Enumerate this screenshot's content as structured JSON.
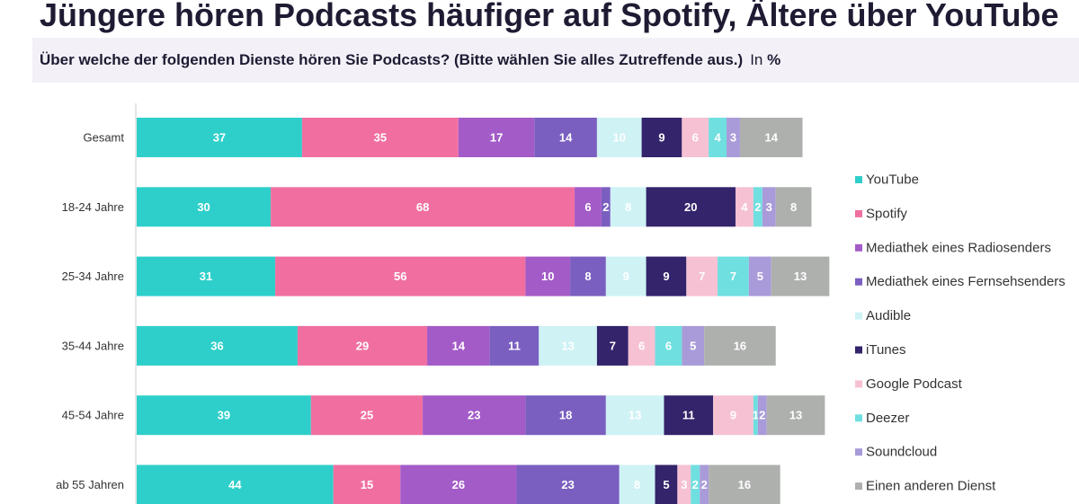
{
  "title": "Jüngere hören Podcasts häufiger auf Spotify, Ältere über YouTube",
  "subtitle": "Über welche der folgenden Dienste hören Sie Podcasts? (Bitte wählen Sie alles Zutreffende aus.)",
  "unit_prefix": "In",
  "unit": "%",
  "chart_data": {
    "type": "bar",
    "orientation": "horizontal",
    "stacked": true,
    "legend": "right",
    "grid": false,
    "categories": [
      "Gesamt",
      "18-24 Jahre",
      "25-34  Jahre",
      "35-44 Jahre",
      "45-54 Jahre",
      "ab 55 Jahren"
    ],
    "series": [
      {
        "name": "YouTube",
        "color": "#2ecfca",
        "values": [
          37,
          30,
          31,
          36,
          39,
          44
        ]
      },
      {
        "name": "Spotify",
        "color": "#f06fa0",
        "values": [
          35,
          68,
          56,
          29,
          25,
          15
        ]
      },
      {
        "name": "Mediathek eines Radiosenders",
        "color": "#a35bc7",
        "values": [
          17,
          6,
          10,
          14,
          23,
          26
        ]
      },
      {
        "name": "Mediathek eines Fernsehsenders",
        "color": "#7a5fc0",
        "values": [
          14,
          2,
          8,
          11,
          18,
          23
        ]
      },
      {
        "name": "Audible",
        "color": "#cff2f5",
        "values": [
          10,
          8,
          9,
          13,
          13,
          8
        ]
      },
      {
        "name": "iTunes",
        "color": "#33246b",
        "values": [
          9,
          20,
          9,
          7,
          11,
          5
        ]
      },
      {
        "name": "Google Podcast",
        "color": "#f6c1d3",
        "values": [
          6,
          4,
          7,
          6,
          9,
          3
        ]
      },
      {
        "name": "Deezer",
        "color": "#6fdfdf",
        "values": [
          4,
          2,
          7,
          6,
          1,
          2
        ]
      },
      {
        "name": "Soundcloud",
        "color": "#a99bd9",
        "values": [
          3,
          3,
          5,
          5,
          2,
          2
        ]
      },
      {
        "name": "Einen anderen Dienst",
        "color": "#aeb0ae",
        "values": [
          14,
          8,
          13,
          16,
          13,
          16
        ]
      }
    ]
  }
}
